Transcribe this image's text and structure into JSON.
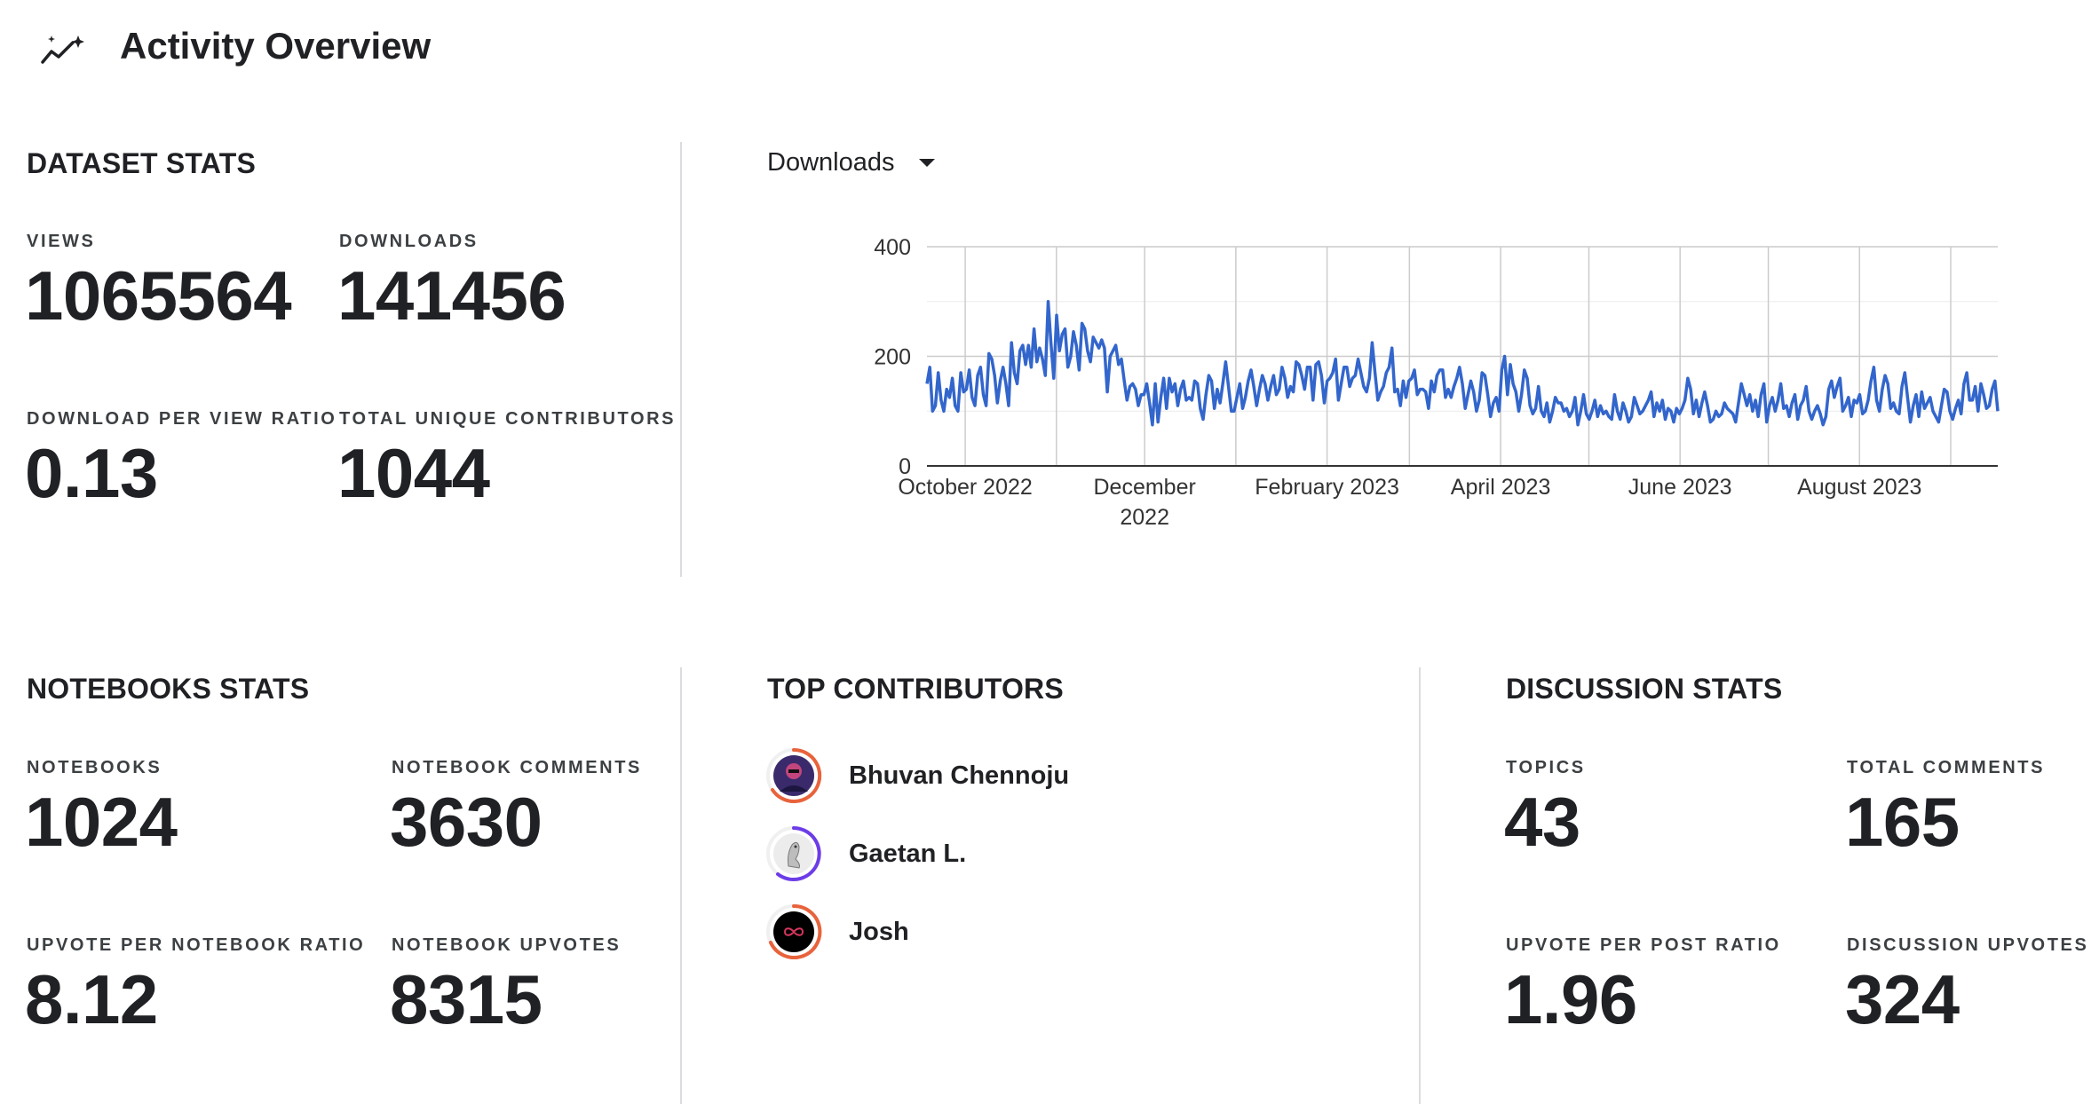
{
  "header": {
    "title": "Activity Overview",
    "icon": "trending-sparkle-icon"
  },
  "dataset_stats": {
    "title": "DATASET STATS",
    "stats": [
      {
        "label": "VIEWS",
        "value": "1065564"
      },
      {
        "label": "DOWNLOADS",
        "value": "141456"
      },
      {
        "label": "DOWNLOAD PER VIEW RATIO",
        "value": "0.13"
      },
      {
        "label": "TOTAL UNIQUE CONTRIBUTORS",
        "value": "1044"
      }
    ]
  },
  "chart_selector": {
    "selected": "Downloads"
  },
  "chart_data": {
    "type": "line",
    "title": "",
    "xlabel": "",
    "ylabel": "",
    "ylim": [
      0,
      400
    ],
    "yticks": [
      "400",
      "200",
      "0"
    ],
    "xticks": [
      "October 2022",
      "December 2022",
      "February 2023",
      "April 2023",
      "June 2023",
      "August 2023"
    ],
    "x_range": [
      "2022-09-18",
      "2023-09-17"
    ],
    "color": "#3366cc",
    "series": [
      {
        "values": [
          150,
          180,
          100,
          110,
          170,
          120,
          100,
          140,
          125,
          160,
          110,
          100,
          170,
          135,
          140,
          175,
          125,
          110,
          165,
          180,
          130,
          110,
          205,
          195,
          165,
          115,
          155,
          180,
          150,
          110,
          225,
          170,
          150,
          210,
          220,
          185,
          220,
          180,
          250,
          190,
          215,
          195,
          165,
          300,
          225,
          160,
          275,
          210,
          240,
          250,
          180,
          200,
          245,
          220,
          175,
          260,
          250,
          210,
          190,
          235,
          225,
          215,
          230,
          215,
          135,
          200,
          210,
          220,
          185,
          195,
          155,
          120,
          145,
          150,
          140,
          110,
          130,
          130,
          150,
          115,
          75,
          150,
          80,
          125,
          160,
          105,
          160,
          135,
          150,
          110,
          140,
          155,
          120,
          125,
          120,
          155,
          150,
          105,
          85,
          130,
          165,
          155,
          105,
          140,
          115,
          150,
          190,
          145,
          100,
          100,
          125,
          150,
          105,
          125,
          155,
          175,
          145,
          110,
          140,
          165,
          150,
          120,
          145,
          165,
          130,
          140,
          180,
          160,
          125,
          145,
          135,
          190,
          185,
          165,
          140,
          180,
          180,
          120,
          185,
          190,
          165,
          115,
          155,
          160,
          170,
          195,
          120,
          150,
          180,
          180,
          145,
          160,
          165,
          195,
          170,
          145,
          135,
          160,
          225,
          170,
          120,
          135,
          145,
          170,
          180,
          215,
          135,
          140,
          110,
          155,
          125,
          155,
          160,
          175,
          130,
          140,
          140,
          135,
          105,
          155,
          135,
          165,
          175,
          175,
          125,
          140,
          125,
          145,
          160,
          180,
          150,
          105,
          130,
          155,
          135,
          100,
          120,
          170,
          165,
          130,
          90,
          115,
          125,
          100,
          175,
          200,
          130,
          185,
          150,
          135,
          100,
          130,
          175,
          160,
          110,
          95,
          105,
          145,
          100,
          90,
          115,
          80,
          100,
          125,
          115,
          115,
          100,
          105,
          90,
          100,
          125,
          75,
          100,
          130,
          95,
          85,
          100,
          120,
          90,
          110,
          95,
          100,
          90,
          85,
          130,
          100,
          85,
          115,
          100,
          80,
          90,
          125,
          110,
          95,
          100,
          110,
          120,
          135,
          90,
          115,
          100,
          120,
          85,
          105,
          100,
          80,
          105,
          95,
          105,
          120,
          160,
          140,
          95,
          120,
          90,
          115,
          135,
          110,
          80,
          85,
          100,
          90,
          95,
          115,
          105,
          100,
          95,
          80,
          115,
          150,
          130,
          110,
          130,
          100,
          120,
          90,
          130,
          150,
          80,
          110,
          125,
          100,
          120,
          150,
          105,
          110,
          90,
          115,
          130,
          85,
          110,
          120,
          145,
          100,
          85,
          100,
          110,
          95,
          75,
          90,
          140,
          155,
          125,
          145,
          160,
          100,
          110,
          125,
          90,
          120,
          115,
          130,
          95,
          100,
          120,
          155,
          180,
          120,
          100,
          140,
          165,
          150,
          105,
          115,
          100,
          95,
          145,
          170,
          125,
          80,
          110,
          130,
          90,
          135,
          105,
          115,
          125,
          100,
          90,
          80,
          110,
          140,
          135,
          100,
          85,
          105,
          120,
          95,
          150,
          170,
          120,
          120,
          145,
          100,
          150,
          130,
          105,
          110,
          140,
          155,
          100
        ]
      }
    ]
  },
  "notebooks_stats": {
    "title": "NOTEBOOKS STATS",
    "stats": [
      {
        "label": "NOTEBOOKS",
        "value": "1024"
      },
      {
        "label": "NOTEBOOK COMMENTS",
        "value": "3630"
      },
      {
        "label": "UPVOTE PER NOTEBOOK RATIO",
        "value": "8.12"
      },
      {
        "label": "NOTEBOOK UPVOTES",
        "value": "8315"
      }
    ]
  },
  "top_contributors": {
    "title": "TOP CONTRIBUTORS",
    "people": [
      {
        "name": "Bhuvan Chennoju",
        "ring_color": "#e8633c",
        "avatar_bg": "#3a2a6b"
      },
      {
        "name": "Gaetan L.",
        "ring_color": "#6c3ce8",
        "avatar_bg": "#e9e9e9"
      },
      {
        "name": "Josh",
        "ring_color": "#e8633c",
        "avatar_bg": "#000000"
      }
    ]
  },
  "discussion_stats": {
    "title": "DISCUSSION STATS",
    "stats": [
      {
        "label": "TOPICS",
        "value": "43"
      },
      {
        "label": "TOTAL COMMENTS",
        "value": "165"
      },
      {
        "label": "UPVOTE PER POST RATIO",
        "value": "1.96"
      },
      {
        "label": "DISCUSSION UPVOTES",
        "value": "324"
      }
    ]
  }
}
